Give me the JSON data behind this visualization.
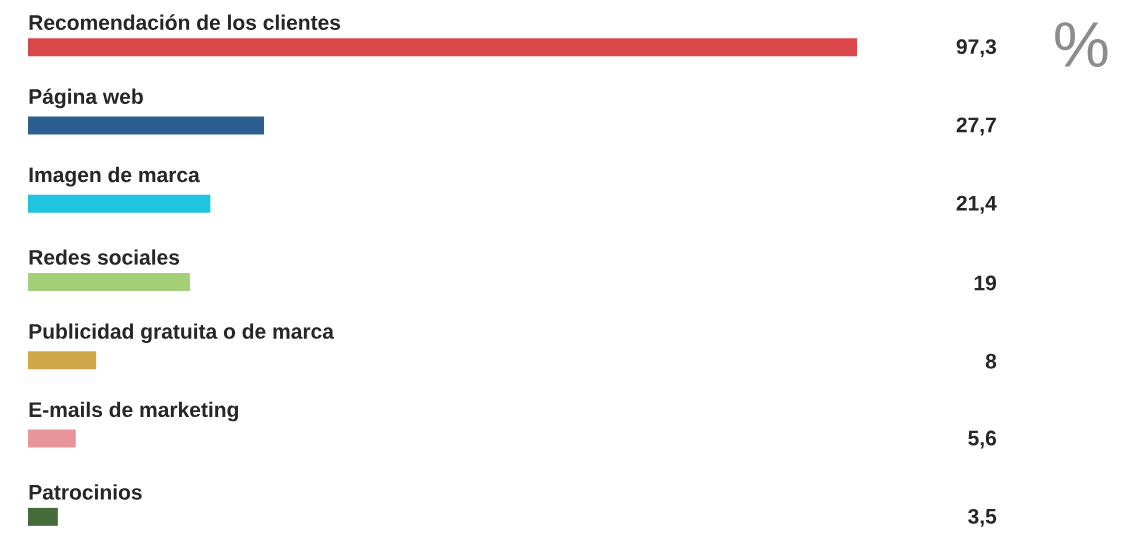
{
  "chart_data": {
    "type": "bar",
    "orientation": "horizontal",
    "categories": [
      "Recomendación de los clientes",
      "Página web",
      "Imagen de marca",
      "Redes sociales",
      "Publicidad gratuita o de marca",
      "E-mails de marketing",
      "Patrocinios"
    ],
    "values": [
      97.3,
      27.7,
      21.4,
      19,
      8,
      5.6,
      3.5
    ],
    "value_labels": [
      "97,3",
      "27,7",
      "21,4",
      "19",
      "8",
      "5,6",
      "3,5"
    ],
    "colors": [
      "#d9474a",
      "#2c5f8f",
      "#1ec4e0",
      "#a3d076",
      "#d0a84a",
      "#e8959a",
      "#456b3a"
    ],
    "annotations": [
      "%"
    ]
  }
}
